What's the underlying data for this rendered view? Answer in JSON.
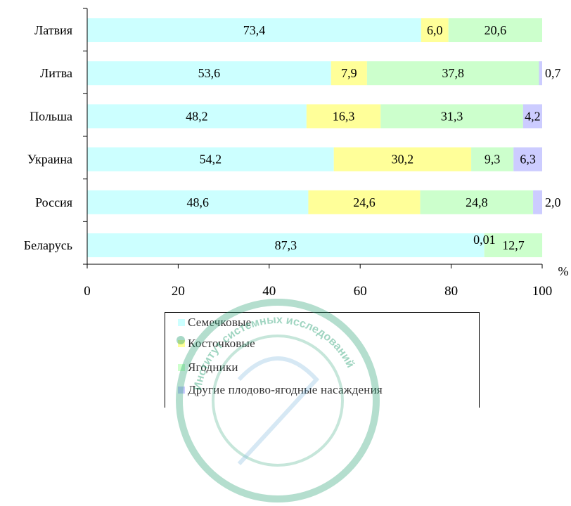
{
  "chart_data": {
    "type": "bar",
    "orientation": "horizontal",
    "stacked": true,
    "categories": [
      "Латвия",
      "Литва",
      "Польша",
      "Украина",
      "Россия",
      "Беларусь"
    ],
    "series": [
      {
        "name": "Семечковые",
        "color": "#ccffff",
        "values": [
          73.4,
          53.6,
          48.2,
          54.2,
          48.6,
          87.3
        ],
        "labels": [
          "73,4",
          "53,6",
          "48,2",
          "54,2",
          "48,6",
          "87,3"
        ]
      },
      {
        "name": "Косточковые",
        "color": "#ffff99",
        "values": [
          6.0,
          7.9,
          16.3,
          30.2,
          24.6,
          0.01
        ],
        "labels": [
          "6,0",
          "7,9",
          "16,3",
          "30,2",
          "24,6",
          "0,01"
        ]
      },
      {
        "name": "Ягодники",
        "color": "#ccffcc",
        "values": [
          20.6,
          37.8,
          31.3,
          9.3,
          24.8,
          12.7
        ],
        "labels": [
          "20,6",
          "37,8",
          "31,3",
          "9,3",
          "24,8",
          "12,7"
        ]
      },
      {
        "name": "Другие плодово-ягодные насаждения",
        "color": "#ccccff",
        "values": [
          0,
          0.7,
          4.2,
          6.3,
          2.0,
          0
        ],
        "labels": [
          "",
          "0,7",
          "4,2",
          "6,3",
          "2,0",
          ""
        ]
      }
    ],
    "xlim": [
      0,
      100
    ],
    "xticks": [
      "0",
      "20",
      "40",
      "60",
      "80",
      "100"
    ],
    "xunit": "%",
    "grid": false,
    "legend_position": "bottom"
  },
  "watermark_text": "Институт системных исследований"
}
